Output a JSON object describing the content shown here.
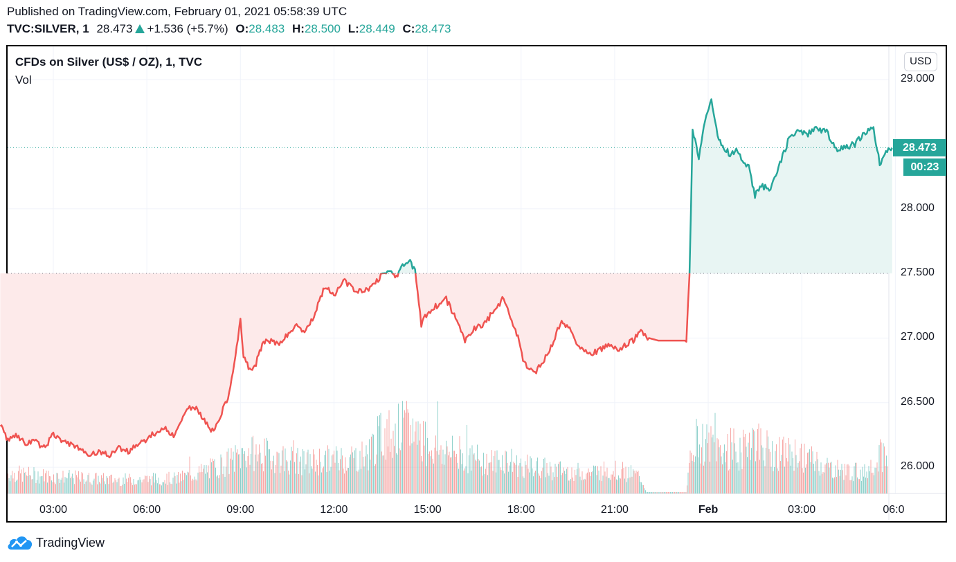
{
  "header": {
    "published": "Published on TradingView.com, February 01, 2021 05:58:39 UTC",
    "symbol": "TVC:SILVER, 1",
    "last": "28.473",
    "change": "+1.536 (+5.7%)",
    "o_label": "O:",
    "o": "28.483",
    "h_label": "H:",
    "h": "28.500",
    "l_label": "L:",
    "l": "28.449",
    "c_label": "C:",
    "c": "28.473"
  },
  "chart": {
    "title": "CFDs on Silver (US$ / OZ), 1, TVC",
    "volume_label": "Vol",
    "currency_button": "USD",
    "price_label": "28.473",
    "countdown_label": "00:23",
    "colors": {
      "up": "#26a69a",
      "down": "#ef5350",
      "up_fill": "#e8f5f3",
      "down_fill": "#fdeaea",
      "grid": "#f0f3fa"
    }
  },
  "footer": {
    "brand": "TradingView"
  },
  "chart_data": {
    "type": "line",
    "title": "CFDs on Silver (US$ / OZ), 1, TVC",
    "xlabel": "",
    "ylabel": "USD",
    "baseline_prev_close": 27.5,
    "ylim": [
      25.8,
      29.15
    ],
    "y_ticks": [
      "29.000",
      "28.000",
      "27.500",
      "27.000",
      "26.500",
      "26.000"
    ],
    "x_ticks": [
      {
        "label": "03:00",
        "h": 3
      },
      {
        "label": "06:00",
        "h": 6
      },
      {
        "label": "09:00",
        "h": 9
      },
      {
        "label": "12:00",
        "h": 12
      },
      {
        "label": "15:00",
        "h": 15
      },
      {
        "label": "18:00",
        "h": 18
      },
      {
        "label": "21:00",
        "h": 21
      },
      {
        "label": "Feb",
        "h": 24,
        "bold": true
      },
      {
        "label": "03:00",
        "h": 27
      },
      {
        "label": "06:0",
        "h": 30
      }
    ],
    "grid": true,
    "price_series": {
      "name": "SILVER close",
      "x_hours": [
        1.3,
        1.5,
        1.8,
        2.1,
        2.4,
        2.7,
        3.0,
        3.3,
        3.6,
        3.9,
        4.2,
        4.5,
        4.8,
        5.1,
        5.4,
        5.7,
        6.0,
        6.3,
        6.6,
        6.9,
        7.2,
        7.5,
        7.8,
        8.1,
        8.4,
        8.6,
        8.8,
        9.0,
        9.1,
        9.3,
        9.5,
        9.7,
        9.9,
        10.2,
        10.5,
        10.8,
        11.1,
        11.4,
        11.7,
        12.0,
        12.3,
        12.6,
        12.9,
        13.2,
        13.5,
        13.8,
        14.0,
        14.2,
        14.4,
        14.6,
        14.8,
        15.0,
        15.3,
        15.6,
        15.9,
        16.2,
        16.5,
        16.8,
        17.1,
        17.4,
        17.7,
        17.9,
        18.1,
        18.4,
        18.7,
        19.0,
        19.3,
        19.6,
        19.9,
        20.2,
        20.5,
        20.8,
        21.1,
        21.4,
        21.6,
        21.8,
        22.1,
        22.4,
        22.7,
        23.0,
        23.3,
        23.4,
        23.5,
        23.7,
        23.9,
        24.1,
        24.3,
        24.5,
        24.7,
        24.9,
        25.1,
        25.3,
        25.5,
        25.7,
        26.0,
        26.3,
        26.6,
        26.9,
        27.2,
        27.5,
        27.8,
        28.1,
        28.4,
        28.7,
        29.0,
        29.3,
        29.5,
        29.7,
        29.9
      ],
      "values": [
        26.33,
        26.22,
        26.25,
        26.18,
        26.2,
        26.15,
        26.25,
        26.2,
        26.18,
        26.12,
        26.1,
        26.12,
        26.09,
        26.15,
        26.12,
        26.18,
        26.22,
        26.27,
        26.3,
        26.24,
        26.42,
        26.48,
        26.38,
        26.28,
        26.42,
        26.55,
        26.8,
        27.15,
        26.85,
        26.75,
        26.8,
        26.95,
        26.98,
        26.95,
        27.02,
        27.1,
        27.05,
        27.2,
        27.4,
        27.32,
        27.45,
        27.38,
        27.35,
        27.4,
        27.48,
        27.52,
        27.48,
        27.55,
        27.6,
        27.52,
        27.1,
        27.2,
        27.25,
        27.3,
        27.15,
        26.98,
        27.08,
        27.1,
        27.2,
        27.3,
        27.15,
        27.0,
        26.8,
        26.72,
        26.82,
        26.95,
        27.15,
        27.05,
        26.92,
        26.88,
        26.9,
        26.95,
        26.9,
        26.95,
        26.98,
        27.05,
        27.0,
        26.98,
        26.98,
        26.98,
        26.98,
        27.5,
        28.6,
        28.4,
        28.7,
        28.85,
        28.55,
        28.48,
        28.42,
        28.45,
        28.38,
        28.32,
        28.1,
        28.18,
        28.15,
        28.35,
        28.55,
        28.6,
        28.58,
        28.62,
        28.6,
        28.45,
        28.48,
        28.5,
        28.58,
        28.62,
        28.35,
        28.45,
        28.47
      ],
      "session_gap_start_h": 22.0,
      "session_gap_end_h": 23.3,
      "last_close": 28.473
    },
    "volume_series": {
      "note": "1-minute volume bars, teal=up, red=down; relative heights in px of volume pane",
      "x_hours_profile": [
        1.3,
        3,
        5,
        7,
        8,
        8.8,
        9.2,
        10,
        11,
        12,
        13,
        13.5,
        14.3,
        14.7,
        15,
        16,
        17,
        17.5,
        18,
        19,
        20,
        21,
        21.8,
        22,
        23.3,
        23.5,
        24,
        25,
        25.3,
        26,
        27,
        28,
        29,
        29.5,
        29.9
      ],
      "relative_height": [
        0.3,
        0.25,
        0.2,
        0.22,
        0.35,
        0.5,
        0.6,
        0.55,
        0.45,
        0.5,
        0.55,
        0.85,
        0.95,
        0.9,
        0.7,
        0.55,
        0.45,
        0.5,
        0.4,
        0.35,
        0.3,
        0.35,
        0.25,
        0.05,
        0.05,
        0.8,
        0.7,
        0.55,
        0.85,
        0.6,
        0.55,
        0.35,
        0.3,
        0.6,
        0.4
      ]
    }
  }
}
